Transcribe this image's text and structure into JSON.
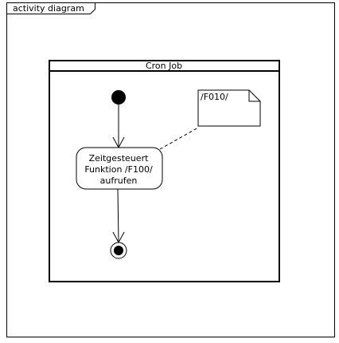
{
  "frame": {
    "title": "activity diagram"
  },
  "partition": {
    "title": "Cron Job"
  },
  "action": {
    "lines": [
      "Zeitgesteuert",
      "Funktion /F100/",
      "aufrufen"
    ]
  },
  "note": {
    "text": "/F010/"
  },
  "colors": {
    "stroke": "#000000",
    "fill": "#ffffff",
    "node": "#000000"
  }
}
